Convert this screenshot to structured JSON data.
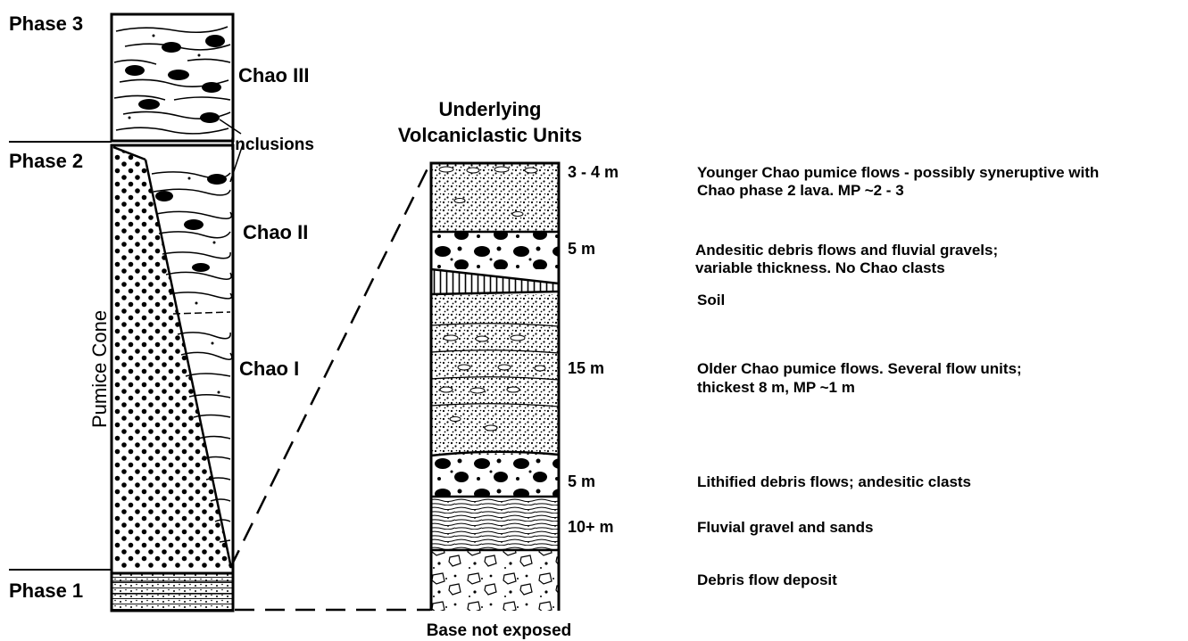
{
  "phases": [
    {
      "key": "phase3",
      "label": "Phase 3"
    },
    {
      "key": "phase2",
      "label": "Phase 2"
    },
    {
      "key": "phase1",
      "label": "Phase 1"
    }
  ],
  "chao_units": [
    {
      "key": "chao3",
      "label": "Chao III"
    },
    {
      "key": "chao2",
      "label": "Chao II"
    },
    {
      "key": "chao1",
      "label": "Chao I"
    }
  ],
  "inclusions_label": "Inclusions",
  "pumice_cone_label": "Pumice Cone",
  "underlying": {
    "title_line1": "Underlying",
    "title_line2": "Volcaniclastic Units",
    "base_label": "Base not exposed"
  },
  "units": [
    {
      "thickness": "3 - 4 m",
      "desc1": "Younger Chao pumice flows - possibly syneruptive with",
      "desc2": "Chao phase 2 lava.   MP ~2 - 3"
    },
    {
      "thickness": "5 m",
      "desc1": "Andesitic debris flows and fluvial gravels;",
      "desc2": "variable thickness.  No Chao clasts"
    },
    {
      "thickness": "",
      "desc1": "Soil",
      "desc2": ""
    },
    {
      "thickness": "15 m",
      "desc1": "Older Chao pumice flows.  Several flow units;",
      "desc2": "thickest 8 m, MP ~1 m"
    },
    {
      "thickness": "5 m",
      "desc1": "Lithified debris flows; andesitic clasts",
      "desc2": ""
    },
    {
      "thickness": "10+ m",
      "desc1": "Fluvial gravel and sands",
      "desc2": ""
    },
    {
      "thickness": "",
      "desc1": "Debris flow deposit",
      "desc2": ""
    }
  ],
  "colors": {
    "ink": "#000000",
    "paper": "#ffffff"
  }
}
